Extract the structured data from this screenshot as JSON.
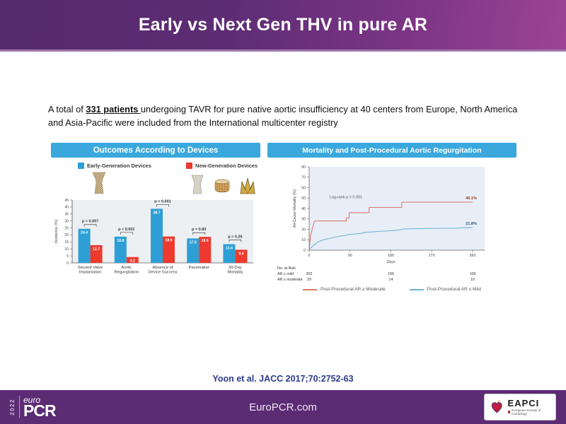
{
  "slide": {
    "title": "Early vs Next Gen THV in pure AR",
    "intro": {
      "prefix": "A total of ",
      "highlight": "331 patients ",
      "suffix": "undergoing TAVR for pure native aortic insufficiency at 40 centers from Europe, North America and Asia-Pacific were included from the International multicenter registry"
    },
    "citation": "Yoon et al. JACC 2017;70:2752-63",
    "footer": {
      "year": "2022",
      "logo_top": "euro",
      "logo_main": "PCR",
      "url": "EuroPCR.com",
      "eapci": "EAPCI",
      "eapci_sub": "European Society of Cardiology"
    }
  },
  "left_panel": {
    "header": "Outcomes According to Devices",
    "legend": [
      {
        "label": "Early-Generation Devices",
        "color": "#2d9fd6"
      },
      {
        "label": "New-Generation Devices",
        "color": "#ee3a2e"
      }
    ]
  },
  "right_panel": {
    "header": "Mortality and Post-Procedural Aortic Regurgitation",
    "legend": [
      {
        "label": "Post-Procedural AR ≥ Moderate",
        "color": "#e0776a"
      },
      {
        "label": "Post-Procedural AR ≤ Mild",
        "color": "#6fb3d4"
      }
    ]
  },
  "chart_data": [
    {
      "type": "bar",
      "title": "Outcomes According to Devices",
      "ylabel": "Incidence (%)",
      "ylim": [
        0,
        45
      ],
      "ytick_step": 5,
      "categories": [
        [
          "Second Valve",
          "Implantation"
        ],
        [
          "Aortic",
          "Regurgitation"
        ],
        [
          "Absence of",
          "Device Success"
        ],
        [
          "Pacemaker"
        ],
        [
          "30-Day",
          "Mortality"
        ]
      ],
      "series": [
        {
          "name": "Early-Generation Devices",
          "color": "#2d9fd6",
          "values": [
            24.4,
            18.8,
            38.7,
            17.5,
            13.4
          ]
        },
        {
          "name": "New-Generation Devices",
          "color": "#ee3a2e",
          "values": [
            12.7,
            4.2,
            18.9,
            18.6,
            9.4
          ]
        }
      ],
      "p_values": [
        "p = 0.007",
        "p < 0.001",
        "p < 0.001",
        "p = 0.83",
        "p = 0.26"
      ]
    },
    {
      "type": "line",
      "title": "Mortality and Post-Procedural Aortic Regurgitation",
      "xlabel": "Days",
      "ylabel": "All-Cause Mortality (%)",
      "xlim": [
        0,
        360
      ],
      "xticks": [
        0,
        90,
        180,
        270,
        360
      ],
      "ylim": [
        0,
        80
      ],
      "ytick_step": 10,
      "annotation": "Log-rank p = 0.001",
      "series": [
        {
          "name": "Post-Procedural AR ≥ Moderate",
          "color": "#e0776a",
          "end_label": "46.1%",
          "end_label_color": "#9c3a2e",
          "points": [
            [
              0,
              0
            ],
            [
              1,
              5
            ],
            [
              2,
              10
            ],
            [
              3,
              14
            ],
            [
              5,
              17
            ],
            [
              7,
              21
            ],
            [
              9,
              24
            ],
            [
              12,
              28
            ],
            [
              82,
              28
            ],
            [
              82,
              31
            ],
            [
              88,
              31
            ],
            [
              88,
              36
            ],
            [
              132,
              36
            ],
            [
              132,
              41
            ],
            [
              204,
              41
            ],
            [
              204,
              46.1
            ],
            [
              360,
              46.1
            ]
          ]
        },
        {
          "name": "Post-Procedural AR ≤ Mild",
          "color": "#6fb3d4",
          "end_label": "21.8%",
          "end_label_color": "#285a78",
          "points": [
            [
              0,
              0.5
            ],
            [
              4,
              2.5
            ],
            [
              8,
              4
            ],
            [
              14,
              6
            ],
            [
              20,
              8
            ],
            [
              28,
              9.5
            ],
            [
              36,
              10.5
            ],
            [
              48,
              11.5
            ],
            [
              58,
              12.5
            ],
            [
              68,
              13.5
            ],
            [
              78,
              14
            ],
            [
              86,
              15
            ],
            [
              100,
              15.5
            ],
            [
              112,
              16
            ],
            [
              124,
              17
            ],
            [
              138,
              17.5
            ],
            [
              152,
              18
            ],
            [
              168,
              18.3
            ],
            [
              184,
              18.8
            ],
            [
              196,
              19.2
            ],
            [
              206,
              20.3
            ],
            [
              220,
              20.5
            ],
            [
              240,
              20.7
            ],
            [
              260,
              20.8
            ],
            [
              290,
              21
            ],
            [
              320,
              21
            ],
            [
              338,
              21.4
            ],
            [
              350,
              21.6
            ],
            [
              360,
              21.8
            ]
          ]
        }
      ],
      "risk_table": {
        "title": "No. at Risk",
        "days": [
          0,
          180,
          360
        ],
        "rows": [
          {
            "label": "AR ≤ mild",
            "values": [
              302,
              156,
              109
            ]
          },
          {
            "label": "AR ≥ moderate",
            "values": [
              29,
              14,
              10
            ]
          }
        ]
      }
    }
  ]
}
